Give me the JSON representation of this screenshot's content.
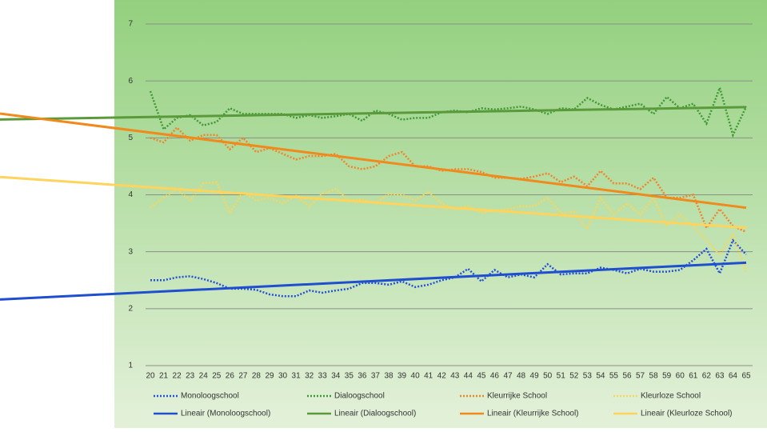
{
  "chart_data": {
    "type": "line",
    "categories": [
      20,
      21,
      22,
      23,
      24,
      25,
      26,
      27,
      28,
      29,
      30,
      31,
      32,
      33,
      34,
      35,
      36,
      37,
      38,
      39,
      40,
      41,
      42,
      43,
      44,
      45,
      46,
      47,
      48,
      49,
      50,
      51,
      52,
      53,
      54,
      55,
      56,
      57,
      58,
      59,
      60,
      61,
      62,
      63,
      64,
      65
    ],
    "ylim": [
      1,
      7
    ],
    "yticks": [
      1,
      2,
      3,
      4,
      5,
      6,
      7
    ],
    "grid": true,
    "series": [
      {
        "name": "Monoloogschool",
        "color": "#2450d8",
        "values": [
          2.5,
          2.5,
          2.55,
          2.57,
          2.52,
          2.45,
          2.35,
          2.35,
          2.33,
          2.25,
          2.22,
          2.22,
          2.32,
          2.28,
          2.32,
          2.35,
          2.45,
          2.45,
          2.42,
          2.48,
          2.38,
          2.42,
          2.5,
          2.55,
          2.7,
          2.48,
          2.68,
          2.55,
          2.6,
          2.55,
          2.78,
          2.6,
          2.62,
          2.62,
          2.72,
          2.68,
          2.62,
          2.7,
          2.65,
          2.65,
          2.68,
          2.85,
          3.05,
          2.62,
          3.2,
          2.95
        ],
        "trendline": {
          "name": "Lineair (Monoloogschool)",
          "color": "#1f4fcf"
        }
      },
      {
        "name": "Dialoogschool",
        "color": "#3f9a36",
        "values": [
          5.82,
          5.15,
          5.35,
          5.4,
          5.22,
          5.28,
          5.52,
          5.42,
          5.42,
          5.42,
          5.42,
          5.35,
          5.4,
          5.35,
          5.38,
          5.42,
          5.3,
          5.48,
          5.42,
          5.32,
          5.35,
          5.35,
          5.45,
          5.48,
          5.45,
          5.52,
          5.5,
          5.52,
          5.55,
          5.5,
          5.42,
          5.52,
          5.5,
          5.7,
          5.58,
          5.5,
          5.55,
          5.6,
          5.42,
          5.72,
          5.52,
          5.6,
          5.25,
          5.88,
          5.05,
          5.55
        ],
        "trendline": {
          "name": "Lineair (Dialoogschool)",
          "color": "#5a9a3a"
        }
      },
      {
        "name": "Kleurrijke School",
        "color": "#f0852a",
        "values": [
          5.0,
          4.92,
          5.18,
          4.95,
          5.05,
          5.05,
          4.8,
          5.0,
          4.75,
          4.82,
          4.72,
          4.62,
          4.68,
          4.68,
          4.72,
          4.5,
          4.45,
          4.5,
          4.68,
          4.75,
          4.5,
          4.5,
          4.42,
          4.45,
          4.45,
          4.4,
          4.3,
          4.3,
          4.28,
          4.32,
          4.38,
          4.22,
          4.32,
          4.15,
          4.42,
          4.2,
          4.2,
          4.1,
          4.3,
          3.95,
          3.95,
          4.0,
          3.42,
          3.75,
          3.45,
          3.35
        ],
        "trendline": {
          "name": "Lineair (Kleurrijke School)",
          "color": "#f08a1c"
        }
      },
      {
        "name": "Kleurloze School",
        "color": "#f7d65e",
        "values": [
          3.78,
          3.95,
          4.1,
          3.9,
          4.2,
          4.22,
          3.68,
          4.05,
          3.9,
          3.95,
          3.85,
          3.98,
          3.8,
          4.02,
          4.1,
          3.9,
          3.92,
          3.85,
          4.02,
          4.0,
          3.9,
          4.05,
          3.85,
          3.75,
          3.8,
          3.68,
          3.72,
          3.75,
          3.8,
          3.8,
          3.95,
          3.68,
          3.7,
          3.4,
          3.95,
          3.65,
          3.85,
          3.65,
          3.95,
          3.45,
          3.65,
          3.45,
          3.2,
          2.95,
          3.3,
          2.65
        ],
        "trendline": {
          "name": "Lineair (Kleurloze School)",
          "color": "#ffd45c"
        }
      }
    ]
  }
}
